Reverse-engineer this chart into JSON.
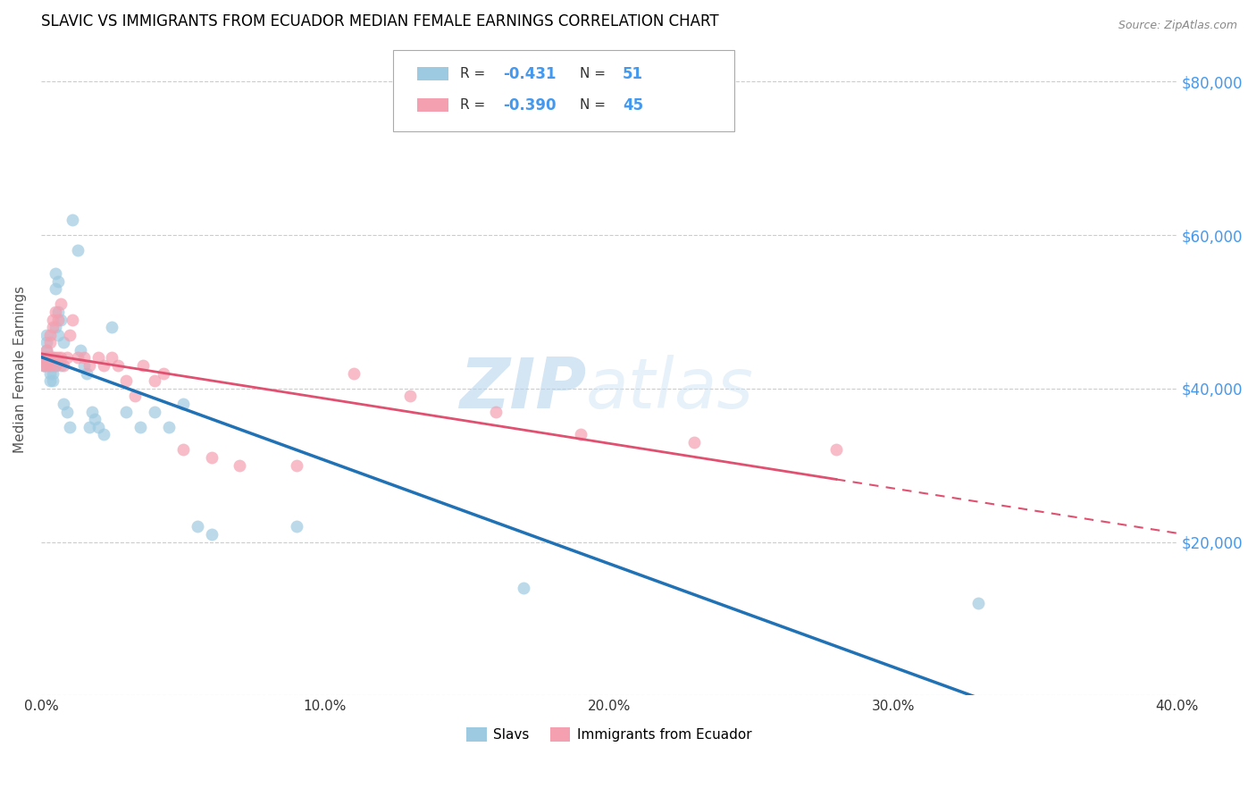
{
  "title": "SLAVIC VS IMMIGRANTS FROM ECUADOR MEDIAN FEMALE EARNINGS CORRELATION CHART",
  "source": "Source: ZipAtlas.com",
  "xlabel_bottom": [
    "0.0%",
    "10.0%",
    "20.0%",
    "30.0%",
    "40.0%"
  ],
  "xlabel_vals": [
    0.0,
    0.1,
    0.2,
    0.3,
    0.4
  ],
  "ylabel_right": [
    "$80,000",
    "$60,000",
    "$40,000",
    "$20,000"
  ],
  "ylabel_right_vals": [
    80000,
    60000,
    40000,
    20000
  ],
  "ylabel_left": "Median Female Earnings",
  "legend_label1": "Slavs",
  "legend_label2": "Immigrants from Ecuador",
  "R1": "-0.431",
  "N1": "51",
  "R2": "-0.390",
  "N2": "45",
  "color_slavs": "#9ecae1",
  "color_ecuador": "#f4a0b0",
  "color_slavs_line": "#2171b5",
  "color_ecuador_line": "#e05070",
  "slavs_x": [
    0.001,
    0.001,
    0.001,
    0.002,
    0.002,
    0.002,
    0.002,
    0.003,
    0.003,
    0.003,
    0.003,
    0.003,
    0.004,
    0.004,
    0.004,
    0.004,
    0.004,
    0.005,
    0.005,
    0.005,
    0.005,
    0.006,
    0.006,
    0.006,
    0.007,
    0.007,
    0.008,
    0.008,
    0.009,
    0.01,
    0.011,
    0.013,
    0.014,
    0.015,
    0.016,
    0.017,
    0.018,
    0.019,
    0.02,
    0.022,
    0.025,
    0.03,
    0.035,
    0.04,
    0.045,
    0.05,
    0.055,
    0.06,
    0.09,
    0.17,
    0.33
  ],
  "slavs_y": [
    44000,
    43000,
    43000,
    45000,
    46000,
    47000,
    44000,
    44000,
    43000,
    43000,
    42000,
    41000,
    44000,
    43000,
    43000,
    42000,
    41000,
    55000,
    53000,
    48000,
    43000,
    54000,
    50000,
    47000,
    49000,
    43000,
    46000,
    38000,
    37000,
    35000,
    62000,
    58000,
    45000,
    43000,
    42000,
    35000,
    37000,
    36000,
    35000,
    34000,
    48000,
    37000,
    35000,
    37000,
    35000,
    38000,
    22000,
    21000,
    22000,
    14000,
    12000
  ],
  "ecuador_x": [
    0.001,
    0.001,
    0.002,
    0.002,
    0.002,
    0.003,
    0.003,
    0.003,
    0.003,
    0.004,
    0.004,
    0.004,
    0.005,
    0.005,
    0.005,
    0.006,
    0.006,
    0.007,
    0.007,
    0.008,
    0.009,
    0.01,
    0.011,
    0.013,
    0.015,
    0.017,
    0.02,
    0.022,
    0.025,
    0.027,
    0.03,
    0.033,
    0.036,
    0.04,
    0.043,
    0.05,
    0.06,
    0.07,
    0.09,
    0.11,
    0.13,
    0.16,
    0.19,
    0.23,
    0.28
  ],
  "ecuador_y": [
    44000,
    43000,
    45000,
    44000,
    43000,
    47000,
    46000,
    44000,
    43000,
    49000,
    48000,
    44000,
    50000,
    44000,
    43000,
    49000,
    44000,
    51000,
    44000,
    43000,
    44000,
    47000,
    49000,
    44000,
    44000,
    43000,
    44000,
    43000,
    44000,
    43000,
    41000,
    39000,
    43000,
    41000,
    42000,
    32000,
    31000,
    30000,
    30000,
    42000,
    39000,
    37000,
    34000,
    33000,
    32000
  ],
  "xlim": [
    0.0,
    0.4
  ],
  "ylim": [
    0,
    85000
  ],
  "background_color": "#ffffff",
  "grid_color": "#cccccc",
  "title_fontsize": 12,
  "axis_fontsize": 11
}
